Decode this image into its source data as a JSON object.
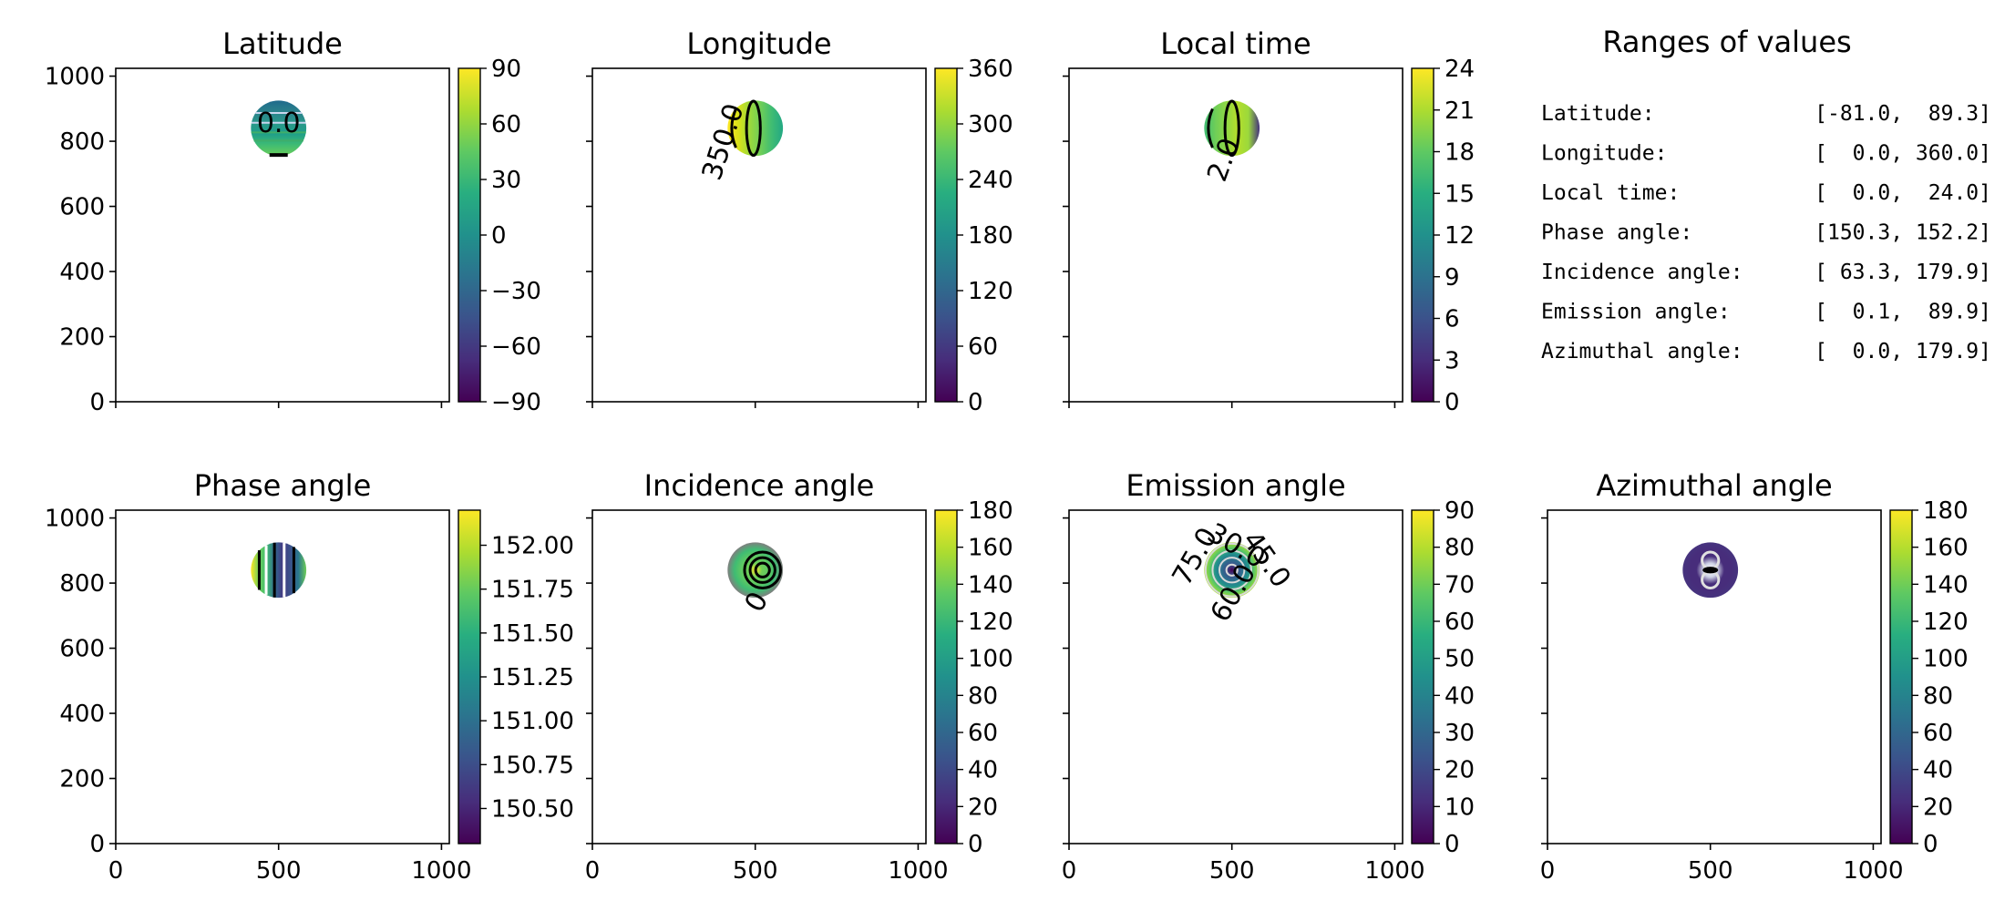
{
  "chart_data": [
    {
      "type": "heatmap",
      "title": "Latitude",
      "xlim": [
        0,
        1024
      ],
      "ylim": [
        0,
        1024
      ],
      "xticks": [
        "0",
        "500",
        "1000"
      ],
      "yticks": [
        "0",
        "200",
        "400",
        "600",
        "800",
        "1000"
      ],
      "disk": {
        "center": [
          500,
          840
        ],
        "radius": 85
      },
      "colorbar": {
        "range": [
          -90,
          90
        ],
        "ticks": [
          "90",
          "60",
          "30",
          "0",
          "−30",
          "−60",
          "−90"
        ]
      },
      "contour_labels": [
        "0.0"
      ],
      "show_xticklabels": false
    },
    {
      "type": "heatmap",
      "title": "Longitude",
      "xlim": [
        0,
        1024
      ],
      "ylim": [
        0,
        1024
      ],
      "xticks": [
        "0",
        "500",
        "1000"
      ],
      "yticks": [
        "0",
        "200",
        "400",
        "600",
        "800",
        "1000"
      ],
      "disk": {
        "center": [
          500,
          840
        ],
        "radius": 85
      },
      "colorbar": {
        "range": [
          0,
          360
        ],
        "ticks": [
          "360",
          "300",
          "240",
          "180",
          "120",
          "60",
          "0"
        ]
      },
      "contour_labels": [
        "350.0"
      ],
      "show_xticklabels": false
    },
    {
      "type": "heatmap",
      "title": "Local time",
      "xlim": [
        0,
        1024
      ],
      "ylim": [
        0,
        1024
      ],
      "xticks": [
        "0",
        "500",
        "1000"
      ],
      "yticks": [
        "0",
        "200",
        "400",
        "600",
        "800",
        "1000"
      ],
      "disk": {
        "center": [
          500,
          840
        ],
        "radius": 85
      },
      "colorbar": {
        "range": [
          0,
          24
        ],
        "ticks": [
          "24",
          "21",
          "18",
          "15",
          "12",
          "9",
          "6",
          "3",
          "0"
        ]
      },
      "contour_labels": [
        "2.0"
      ],
      "show_xticklabels": false
    },
    {
      "type": "heatmap",
      "title": "Phase angle",
      "xlim": [
        0,
        1024
      ],
      "ylim": [
        0,
        1024
      ],
      "xticks": [
        "0",
        "500",
        "1000"
      ],
      "yticks": [
        "0",
        "200",
        "400",
        "600",
        "800",
        "1000"
      ],
      "disk": {
        "center": [
          500,
          840
        ],
        "radius": 85
      },
      "colorbar": {
        "range": [
          150.3,
          152.2
        ],
        "ticks": [
          "152.00",
          "151.75",
          "151.50",
          "151.25",
          "151.00",
          "150.75",
          "150.50"
        ]
      },
      "contour_labels": [],
      "show_xticklabels": true
    },
    {
      "type": "heatmap",
      "title": "Incidence angle",
      "xlim": [
        0,
        1024
      ],
      "ylim": [
        0,
        1024
      ],
      "xticks": [
        "0",
        "500",
        "1000"
      ],
      "yticks": [
        "0",
        "200",
        "400",
        "600",
        "800",
        "1000"
      ],
      "disk": {
        "center": [
          500,
          840
        ],
        "radius": 85
      },
      "colorbar": {
        "range": [
          0,
          180
        ],
        "ticks": [
          "180",
          "160",
          "140",
          "120",
          "100",
          "80",
          "60",
          "40",
          "20",
          "0"
        ]
      },
      "contour_labels": [
        "0"
      ],
      "show_xticklabels": true
    },
    {
      "type": "heatmap",
      "title": "Emission angle",
      "xlim": [
        0,
        1024
      ],
      "ylim": [
        0,
        1024
      ],
      "xticks": [
        "0",
        "500",
        "1000"
      ],
      "yticks": [
        "0",
        "200",
        "400",
        "600",
        "800",
        "1000"
      ],
      "disk": {
        "center": [
          500,
          840
        ],
        "radius": 85
      },
      "colorbar": {
        "range": [
          0,
          90
        ],
        "ticks": [
          "90",
          "80",
          "70",
          "60",
          "50",
          "40",
          "30",
          "20",
          "10",
          "0"
        ]
      },
      "contour_labels": [
        "75.0",
        "30.0",
        "45.0",
        "60.0"
      ],
      "show_xticklabels": true
    },
    {
      "type": "heatmap",
      "title": "Azimuthal angle",
      "xlim": [
        0,
        1024
      ],
      "ylim": [
        0,
        1024
      ],
      "xticks": [
        "0",
        "500",
        "1000"
      ],
      "yticks": [
        "0",
        "200",
        "400",
        "600",
        "800",
        "1000"
      ],
      "disk": {
        "center": [
          500,
          840
        ],
        "radius": 85
      },
      "colorbar": {
        "range": [
          0,
          180
        ],
        "ticks": [
          "180",
          "160",
          "140",
          "120",
          "100",
          "80",
          "60",
          "40",
          "20",
          "0"
        ]
      },
      "contour_labels": [],
      "show_xticklabels": true
    }
  ],
  "ranges_panel": {
    "title": "Ranges of values",
    "rows": [
      {
        "label": "Latitude:",
        "value": "[-81.0,  89.3]"
      },
      {
        "label": "Longitude:",
        "value": "[  0.0, 360.0]"
      },
      {
        "label": "Local time:",
        "value": "[  0.0,  24.0]"
      },
      {
        "label": "Phase angle:",
        "value": "[150.3, 152.2]"
      },
      {
        "label": "Incidence angle:",
        "value": "[ 63.3, 179.9]"
      },
      {
        "label": "Emission angle:",
        "value": "[  0.1,  89.9]"
      },
      {
        "label": "Azimuthal angle:",
        "value": "[  0.0, 179.9]"
      }
    ]
  },
  "colors": {
    "viridis": [
      "#440154",
      "#472d7b",
      "#3b528b",
      "#2c728e",
      "#21918c",
      "#28ae80",
      "#5ec962",
      "#addc30",
      "#fde725"
    ]
  }
}
